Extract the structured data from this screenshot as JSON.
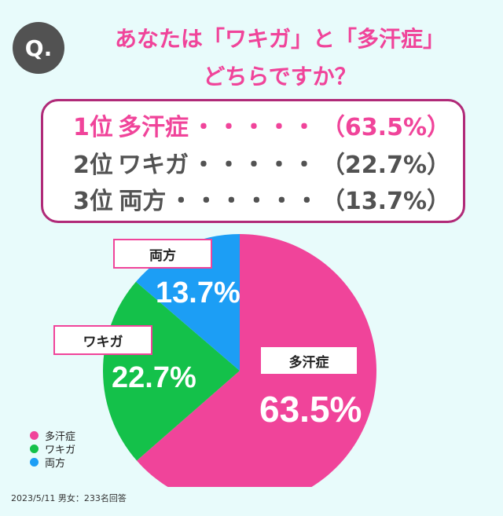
{
  "question": {
    "badge": "Q.",
    "line1": "あなたは「ワキガ」と「多汗症」",
    "line2": "どちらですか？"
  },
  "ranking": [
    {
      "rank": "1位",
      "name": "多汗症",
      "dots": "・・・・・・・",
      "pct": "（63.5%）"
    },
    {
      "rank": "2位",
      "name": "ワキガ",
      "dots": "・・・・・・・",
      "pct": "（22.7%）"
    },
    {
      "rank": "3位",
      "name": "両方",
      "dots": "・・・・・・・・",
      "pct": "（13.7%）"
    }
  ],
  "chart_data": {
    "type": "pie",
    "categories": [
      "多汗症",
      "ワキガ",
      "両方"
    ],
    "values": [
      63.5,
      22.7,
      13.7
    ],
    "value_labels": [
      "63.5%",
      "22.7%",
      "13.7%"
    ],
    "colors": [
      "#f0449a",
      "#14c14a",
      "#1c9ef5"
    ],
    "legend": {
      "placement": "bottom-left",
      "items": [
        "多汗症",
        "ワキガ",
        "両方"
      ]
    }
  },
  "footnote": "2023/5/11 男女：233名回答"
}
